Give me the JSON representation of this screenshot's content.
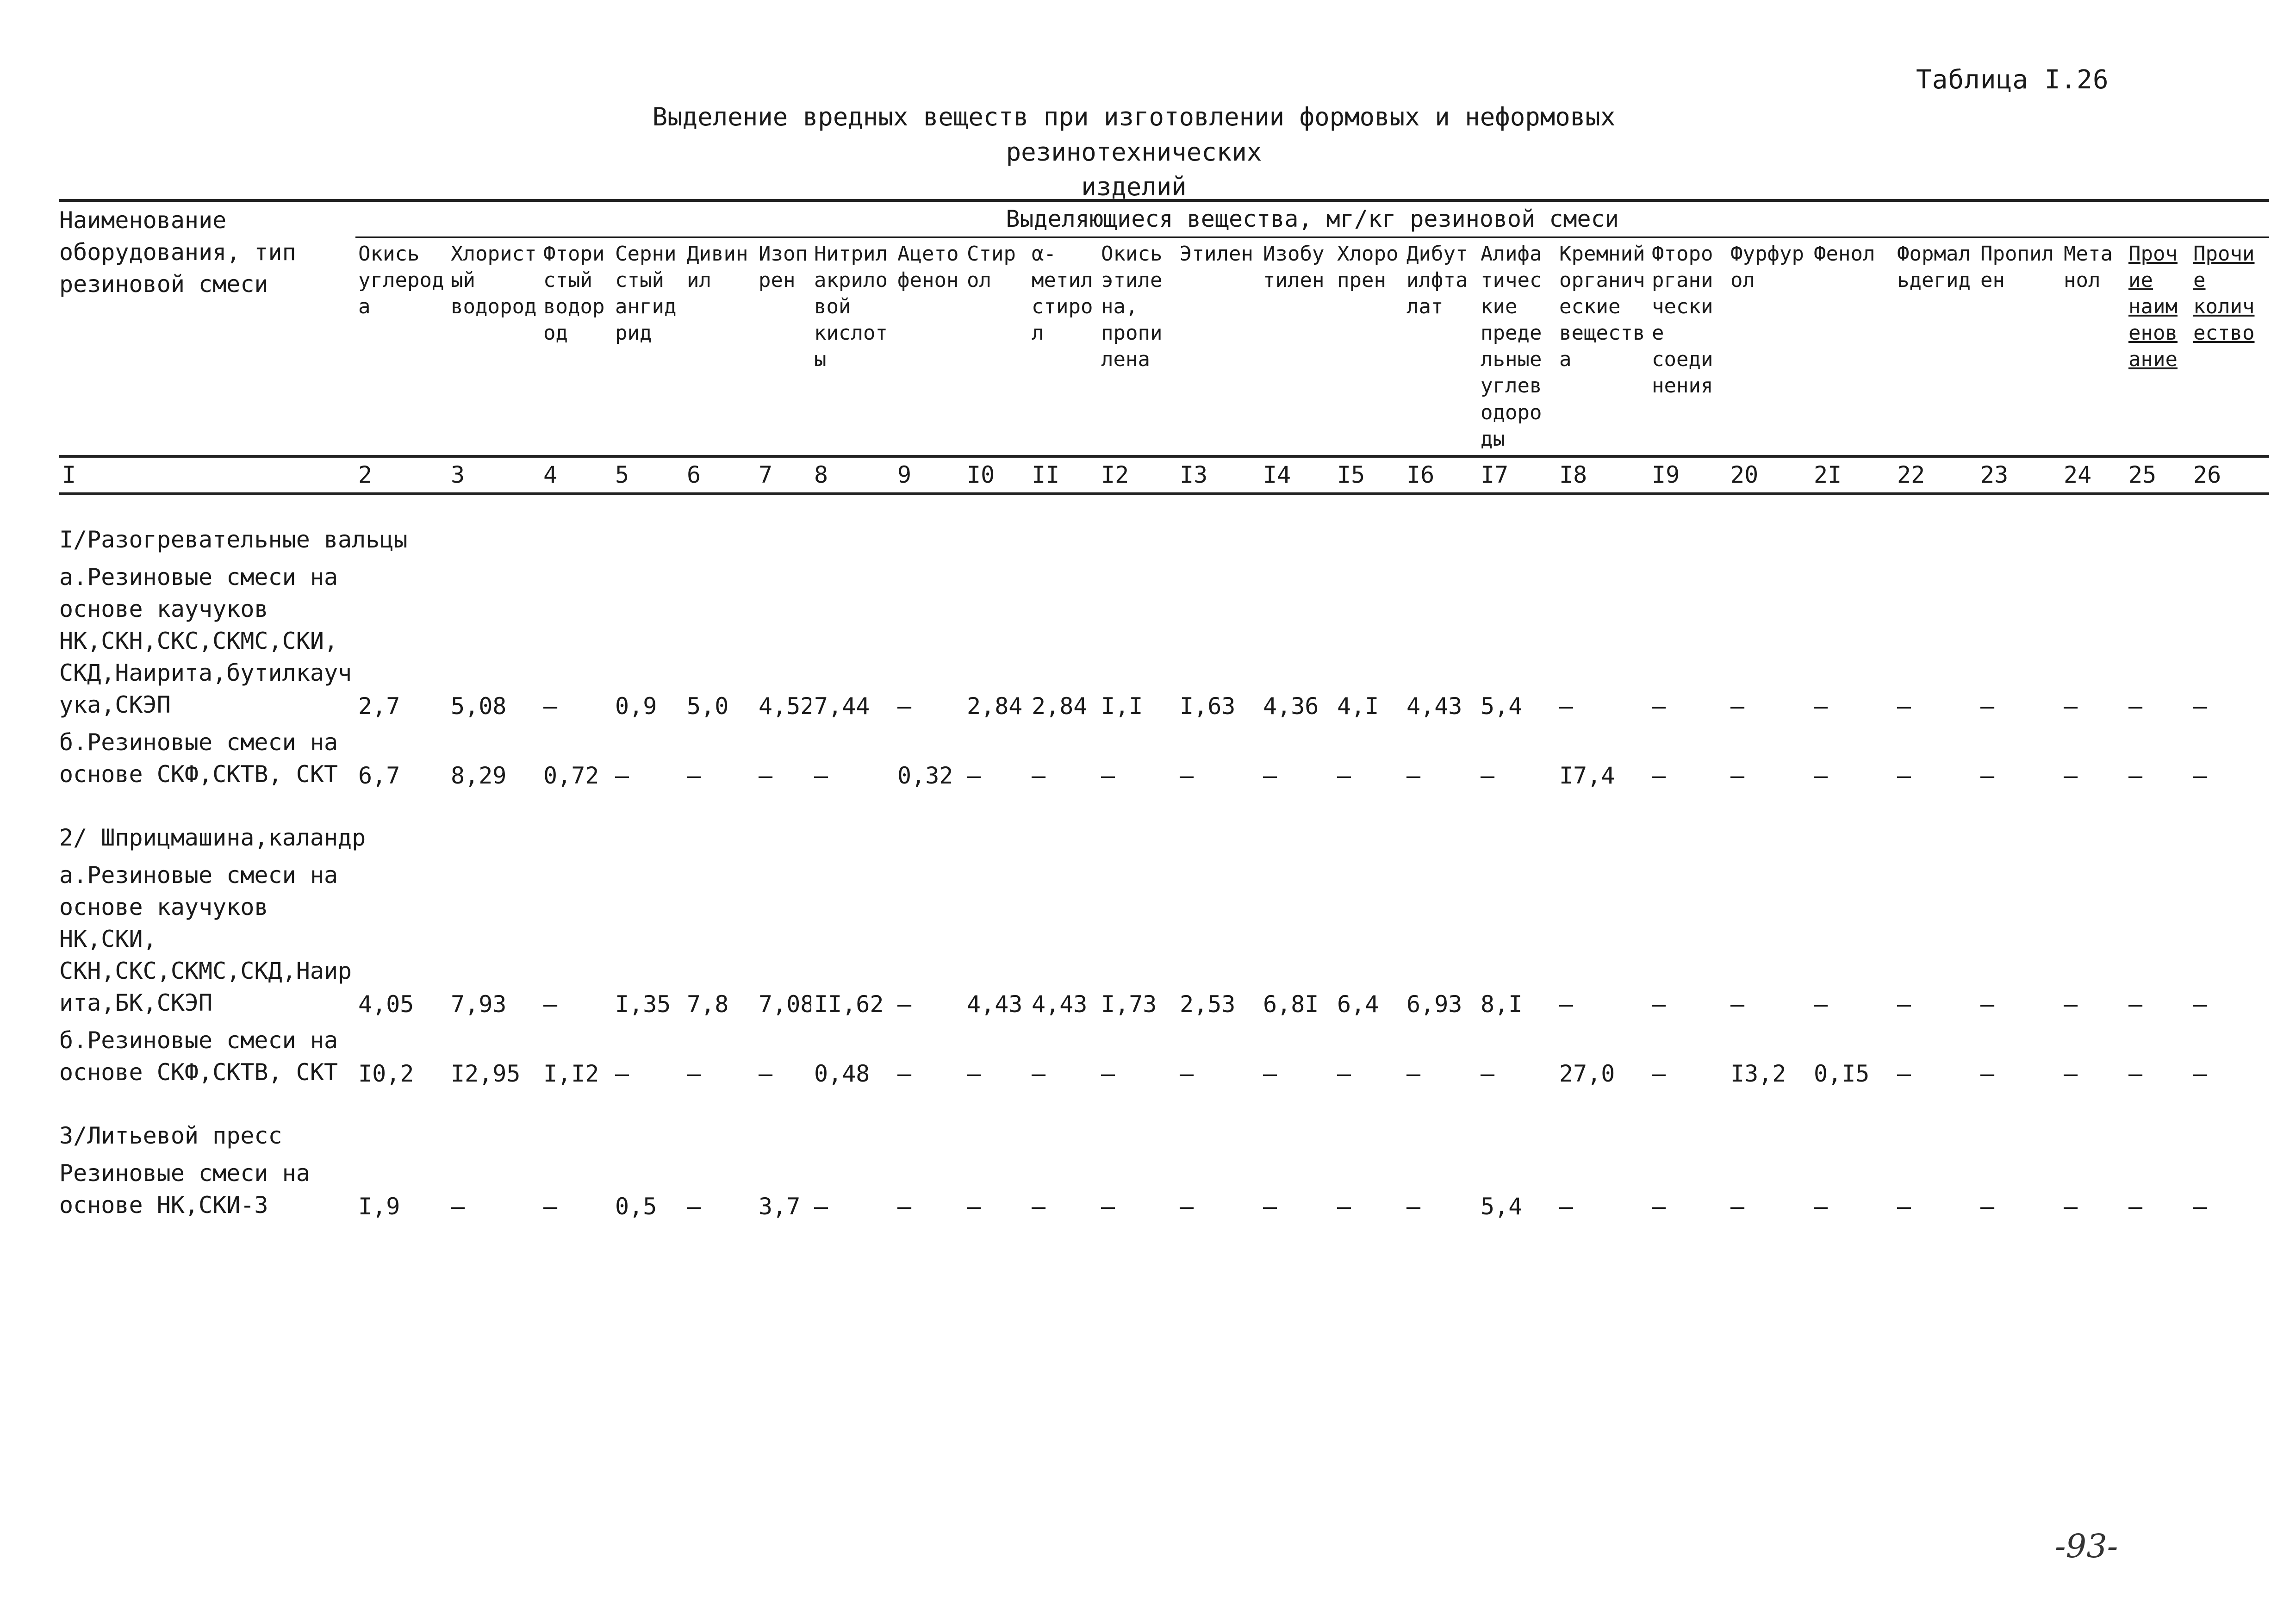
{
  "table_number": "Таблица I.26",
  "title_line1": "Выделение вредных веществ при изготовлении формовых и неформовых резинотехнических",
  "title_line2": "изделий",
  "equipment_header": "Наименование оборудования, тип резиновой смеси",
  "substances_header": "Выделяющиеся вещества, мг/кг резиновой смеси",
  "columns": [
    "Окись углерода",
    "Хлористый водород",
    "Фтористый водород",
    "Сернистый ангидрид",
    "Дивинил",
    "Изопрен",
    "Нитрил акриловой кислоты",
    "Ацетофенон",
    "Стирол",
    "α-метилстирол",
    "Окись этилена, пропилена",
    "Этилен",
    "Изобутилен",
    "Хлоропрен",
    "Дибутилфталат",
    "Алифатические предельные углеводороды",
    "Кремнийорганические вещества",
    "Фторорганические соединения",
    "Фурфурол",
    "Фенол",
    "Формальдегид",
    "Пропилен",
    "Метанол",
    "Прочие наименование",
    "Прочие количество"
  ],
  "column_numbers": [
    "I",
    "2",
    "3",
    "4",
    "5",
    "6",
    "7",
    "8",
    "9",
    "I0",
    "II",
    "I2",
    "I3",
    "I4",
    "I5",
    "I6",
    "I7",
    "I8",
    "I9",
    "20",
    "2I",
    "22",
    "23",
    "24",
    "25",
    "26"
  ],
  "sections": [
    {
      "heading": "I/Разогревательные вальцы",
      "rows": [
        {
          "name": "а.Резиновые смеси на основе каучуков НК,СКН,СКС,СКМС,СКИ, СКД,Наирита,бутилкаучука,СКЭП",
          "values": [
            "2,7",
            "5,08",
            "–",
            "0,9",
            "5,0",
            "4,52",
            "7,44",
            "–",
            "2,84",
            "2,84",
            "I,I",
            "I,63",
            "4,36",
            "4,I",
            "4,43",
            "5,4",
            "–",
            "–",
            "–",
            "–",
            "–",
            "–",
            "–",
            "–",
            "–"
          ]
        },
        {
          "name": "б.Резиновые смеси на основе СКФ,СКТВ, СКТ",
          "values": [
            "6,7",
            "8,29",
            "0,72",
            "–",
            "–",
            "–",
            "–",
            "0,32",
            "–",
            "–",
            "–",
            "–",
            "–",
            "–",
            "–",
            "–",
            "I7,4",
            "–",
            "–",
            "–",
            "–",
            "–",
            "–",
            "–",
            "–"
          ]
        }
      ]
    },
    {
      "heading": "2/ Шприцмашина,каландр",
      "rows": [
        {
          "name": "а.Резиновые смеси на основе каучуков НК,СКИ, СКН,СКС,СКМС,СКД,Наирита,БК,СКЭП",
          "values": [
            "4,05",
            "7,93",
            "–",
            "I,35",
            "7,8",
            "7,08",
            "II,62",
            "–",
            "4,43",
            "4,43",
            "I,73",
            "2,53",
            "6,8I",
            "6,4",
            "6,93",
            "8,I",
            "–",
            "–",
            "–",
            "–",
            "–",
            "–",
            "–",
            "–",
            "–"
          ]
        },
        {
          "name": "б.Резиновые смеси на основе СКФ,СКТВ, СКТ",
          "values": [
            "I0,2",
            "I2,95",
            "I,I2",
            "–",
            "–",
            "–",
            "0,48",
            "–",
            "–",
            "–",
            "–",
            "–",
            "–",
            "–",
            "–",
            "–",
            "27,0",
            "–",
            "I3,2",
            "0,I5",
            "–",
            "–",
            "–",
            "–",
            "–"
          ]
        }
      ]
    },
    {
      "heading": "3/Литьевой пресс",
      "rows": [
        {
          "name": "Резиновые смеси на основе НК,СКИ-3",
          "values": [
            "I,9",
            "–",
            "–",
            "0,5",
            "–",
            "3,7",
            "–",
            "–",
            "–",
            "–",
            "–",
            "–",
            "–",
            "–",
            "–",
            "5,4",
            "–",
            "–",
            "–",
            "–",
            "–",
            "–",
            "–",
            "–",
            "–"
          ]
        }
      ]
    }
  ],
  "page_number": "-93-"
}
